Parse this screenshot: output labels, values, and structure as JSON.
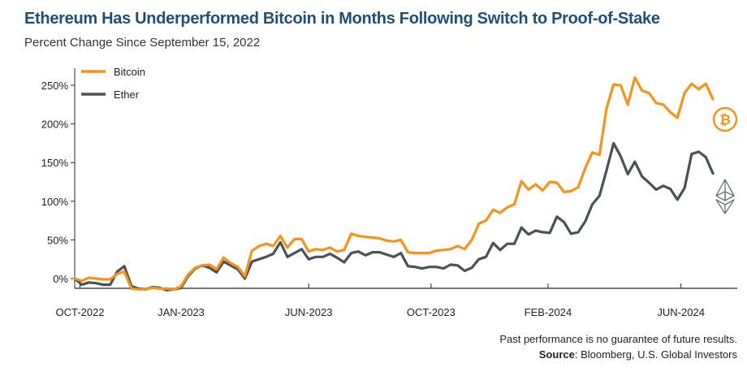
{
  "title": "Ethereum Has Underperformed Bitcoin in Months Following Switch to Proof-of-Stake",
  "subtitle": "Percent Change Since September 15, 2022",
  "footnote": {
    "disclaimer": "Past performance is no guarantee of future results.",
    "source_label": "Source",
    "source_text": ": Bloomberg, U.S. Global Investors"
  },
  "colors": {
    "bitcoin": "#F7931A",
    "ether": "#4A5258",
    "axis": "#1f2933",
    "grid": "#cfd4d8"
  },
  "icons": {
    "bitcoin": "bitcoin-icon",
    "ether": "ethereum-icon"
  },
  "chart_data": {
    "type": "line",
    "xlabel": "",
    "ylabel": "",
    "ylim": [
      -20,
      270
    ],
    "yticks": [
      0,
      50,
      100,
      150,
      200,
      250
    ],
    "ytick_labels": [
      "0%",
      "50%",
      "100%",
      "150%",
      "200%",
      "250%"
    ],
    "xtick_labels": [
      "OCT-2022",
      "JAN-2023",
      "JUN-2023",
      "OCT-2023",
      "FEB-2024",
      "JUN-2024"
    ],
    "legend": "top-left",
    "series": [
      {
        "name": "Bitcoin",
        "values": [
          0,
          -3,
          1,
          0,
          -1,
          -1,
          6,
          9,
          -13,
          -14,
          -14,
          -12,
          -13,
          -13,
          -14,
          -10,
          5,
          14,
          17,
          18,
          12,
          27,
          20,
          15,
          3,
          36,
          42,
          45,
          42,
          55,
          40,
          51,
          51,
          35,
          38,
          37,
          40,
          35,
          37,
          58,
          55,
          54,
          53,
          52,
          49,
          48,
          50,
          34,
          33,
          33,
          33,
          36,
          37,
          38,
          42,
          38,
          50,
          71,
          75,
          89,
          85,
          92,
          96,
          126,
          115,
          122,
          114,
          125,
          124,
          112,
          113,
          118,
          143,
          163,
          160,
          220,
          251,
          250,
          225,
          260,
          243,
          240,
          227,
          225,
          215,
          208,
          240,
          252,
          245,
          252,
          232
        ]
      },
      {
        "name": "Ether",
        "values": [
          0,
          -8,
          -5,
          -6,
          -8,
          -8,
          9,
          16,
          -10,
          -13,
          -14,
          -11,
          -12,
          -15,
          -14,
          -12,
          3,
          13,
          17,
          14,
          8,
          22,
          17,
          12,
          0,
          22,
          25,
          28,
          32,
          47,
          28,
          33,
          38,
          25,
          28,
          28,
          32,
          27,
          21,
          33,
          35,
          30,
          34,
          34,
          31,
          28,
          33,
          16,
          15,
          13,
          15,
          15,
          13,
          18,
          17,
          10,
          14,
          25,
          28,
          46,
          37,
          45,
          45,
          66,
          57,
          62,
          60,
          59,
          80,
          73,
          58,
          60,
          74,
          96,
          107,
          140,
          175,
          158,
          135,
          151,
          132,
          124,
          115,
          120,
          116,
          102,
          117,
          161,
          164,
          157,
          136
        ]
      }
    ]
  }
}
